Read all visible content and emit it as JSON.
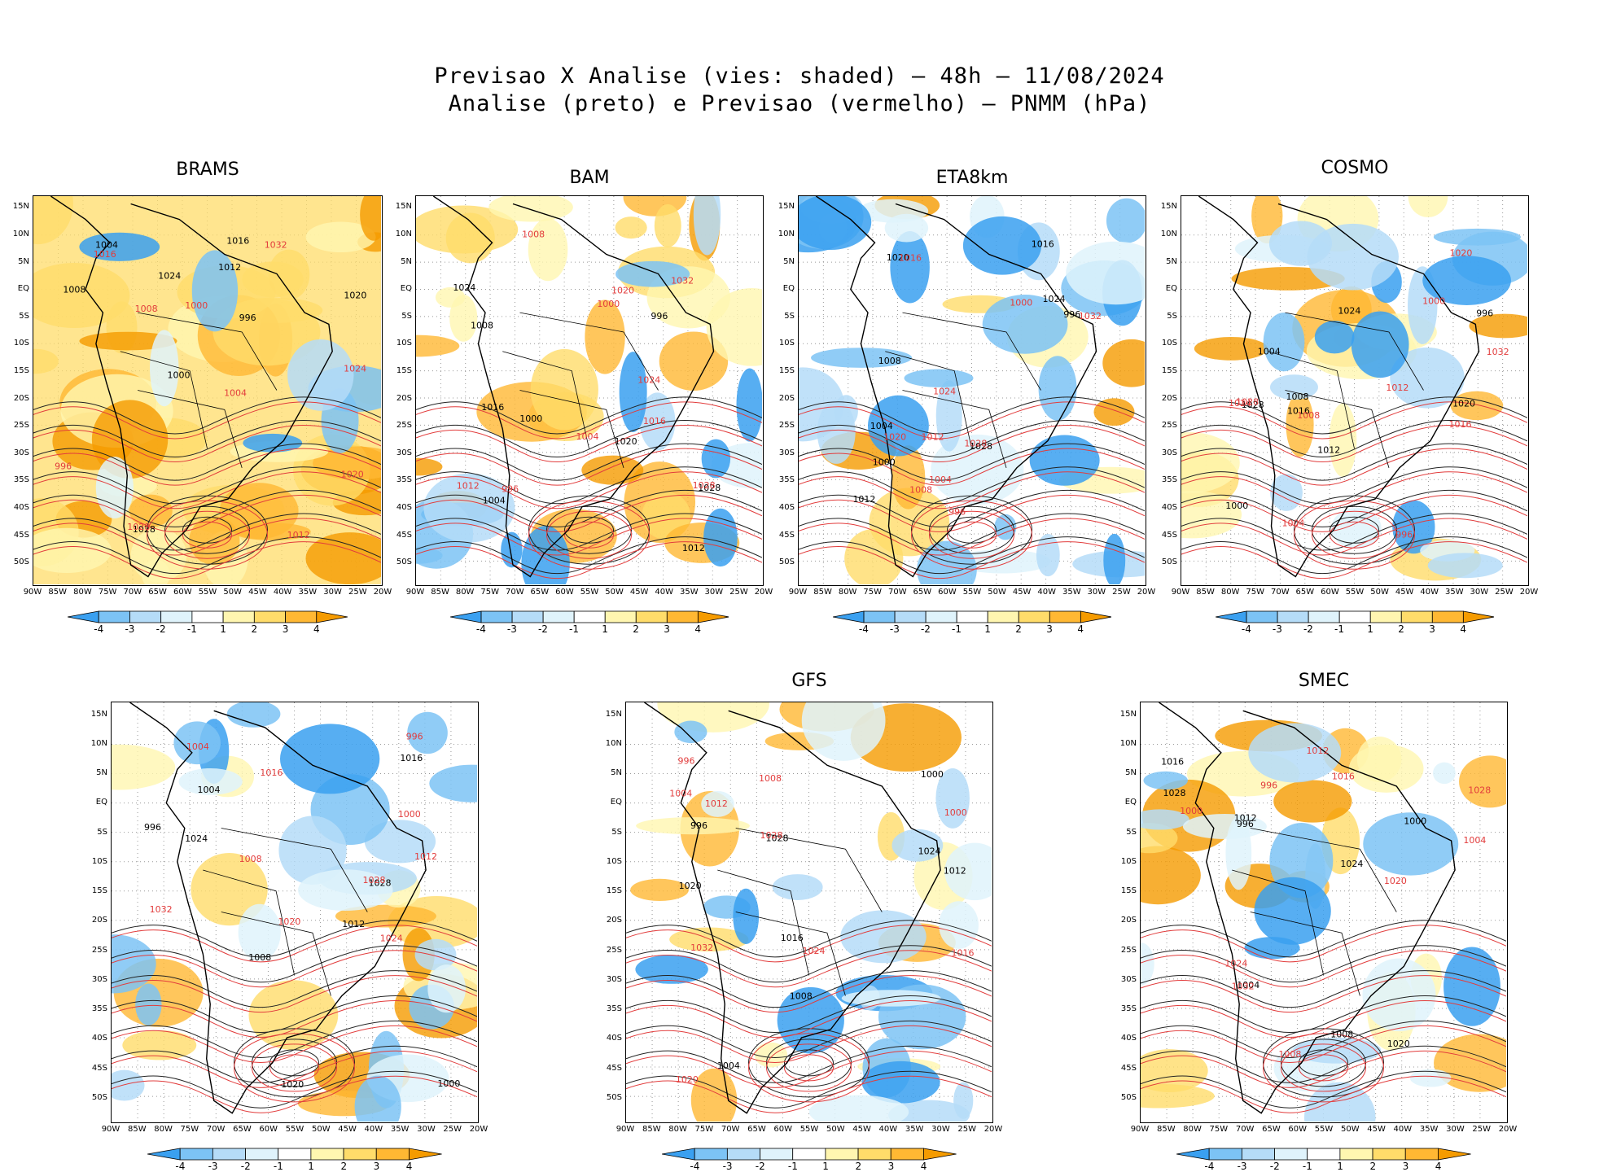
{
  "title": {
    "line1": "Previsao X Analise (vies: shaded) – 48h – 11/08/2024",
    "line2": "Analise (preto) e Previsao (vermelho) – PNMM (hPa)"
  },
  "lat_labels": [
    "15N",
    "10N",
    "5N",
    "EQ",
    "5S",
    "10S",
    "15S",
    "20S",
    "25S",
    "30S",
    "35S",
    "40S",
    "45S",
    "50S"
  ],
  "lon_labels": [
    "90W",
    "85W",
    "80W",
    "75W",
    "70W",
    "65W",
    "60W",
    "55W",
    "50W",
    "45W",
    "40W",
    "35W",
    "30W",
    "25W",
    "20W"
  ],
  "colorbar": {
    "labels": [
      "-4",
      "-3",
      "-2",
      "-1",
      "1",
      "2",
      "3",
      "4"
    ],
    "colors": [
      "#3aa0f0",
      "#7cc3f5",
      "#b5dcf8",
      "#dff3fb",
      "#ffffff",
      "#fff6b0",
      "#ffdc6a",
      "#ffb833",
      "#f59b00"
    ]
  },
  "panels": [
    {
      "name": "BRAMS",
      "bias": "warm"
    },
    {
      "name": "BAM",
      "bias": "mixed-warm"
    },
    {
      "name": "ETA8km",
      "bias": "cool"
    },
    {
      "name": "COSMO",
      "bias": "mixed"
    },
    {
      "name": "",
      "bias": "mixed-cool"
    },
    {
      "name": "GFS",
      "bias": "mixed-cool"
    },
    {
      "name": "SMEC",
      "bias": "mixed"
    }
  ],
  "contour_labels": {
    "black": [
      "1012",
      "1016",
      "1020",
      "1024",
      "1028",
      "1008",
      "1004",
      "1000",
      "996"
    ],
    "red": [
      "1012",
      "1016",
      "1020",
      "1024",
      "1028",
      "1032",
      "1008",
      "1004",
      "1000",
      "996"
    ]
  }
}
